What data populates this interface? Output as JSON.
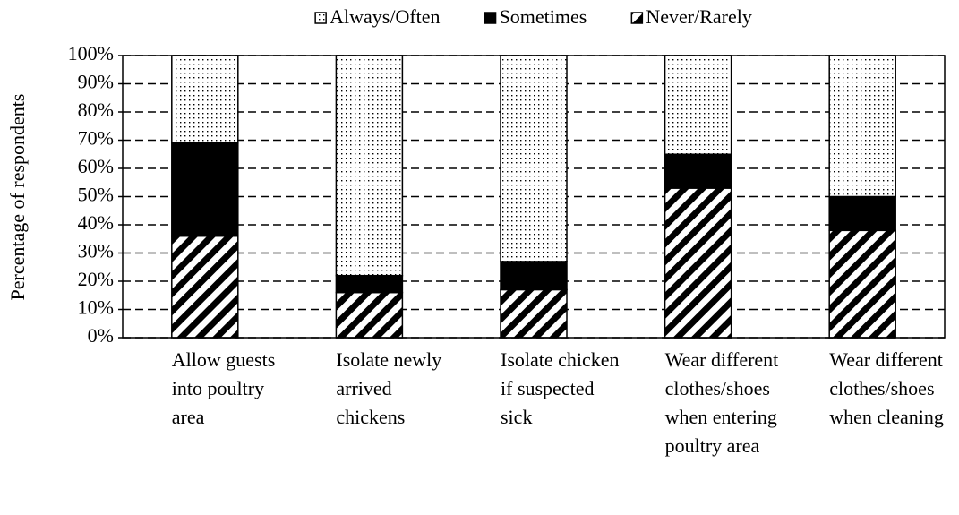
{
  "chart_data": {
    "type": "stacked_bar",
    "ylabel": "Percentage of respondents",
    "categories": [
      "Allow guests into poultry area",
      "Isolate newly arrived chickens",
      "Isolate chicken if suspected sick",
      "Wear different clothes/shoes when entering poultry area",
      "Wear different clothes/shoes when cleaning"
    ],
    "series": [
      {
        "name": "Always/Often",
        "color": "#000000",
        "pattern": "dots",
        "values": [
          31,
          78,
          73,
          35,
          50
        ]
      },
      {
        "name": "Sometimes",
        "color": "#000000",
        "pattern": "solid",
        "values": [
          33,
          6,
          10,
          12,
          12
        ]
      },
      {
        "name": "Never/Rarely",
        "color": "#000000",
        "pattern": "stripes",
        "values": [
          36,
          16,
          17,
          53,
          38
        ]
      }
    ],
    "ylim": [
      0,
      100
    ],
    "yticks": [
      {
        "value": 0,
        "label": "0%"
      },
      {
        "value": 10,
        "label": "10%"
      },
      {
        "value": 20,
        "label": "20%"
      },
      {
        "value": 30,
        "label": "30%"
      },
      {
        "value": 40,
        "label": "40%"
      },
      {
        "value": 50,
        "label": "50%"
      },
      {
        "value": 60,
        "label": "60%"
      },
      {
        "value": 70,
        "label": "70%"
      },
      {
        "value": 80,
        "label": "80%"
      },
      {
        "value": 90,
        "label": "90%"
      },
      {
        "value": 100,
        "label": "100%"
      }
    ],
    "grid": true,
    "legend": "top"
  }
}
